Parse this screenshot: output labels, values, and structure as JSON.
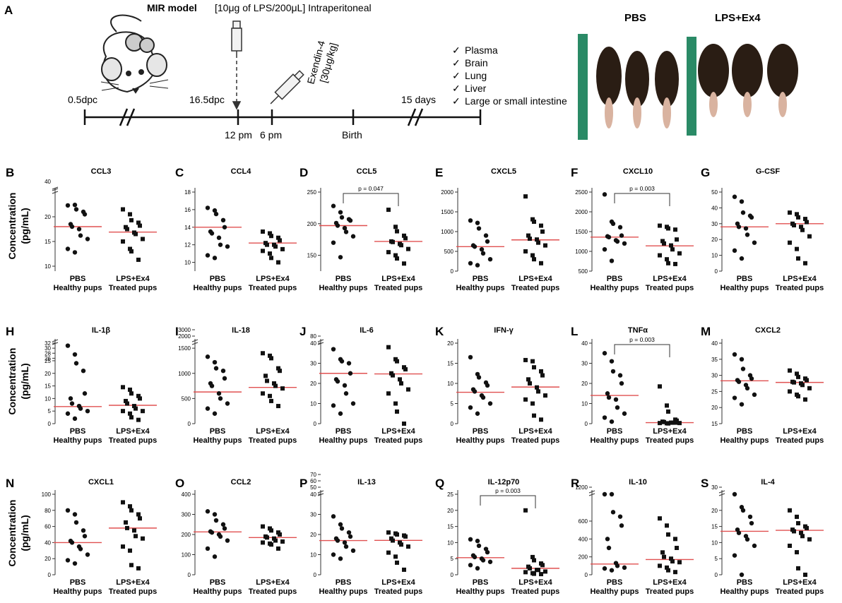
{
  "timeline": {
    "panel_letter": "A",
    "model_title": "MIR model",
    "model_dose": "[10μg of LPS/200μL] Intraperitoneal",
    "exendin_line1": "Exendin-4",
    "exendin_line2": "[30μg/kg]",
    "time_labels": [
      "0.5dpc",
      "16.5dpc",
      "12 pm",
      "6 pm",
      "Birth",
      "15 days"
    ],
    "checklist": [
      "Plasma",
      "Brain",
      "Lung",
      "Liver",
      "Large or small intestine"
    ],
    "photo_labels": [
      "PBS",
      "LPS+Ex4"
    ]
  },
  "ylabel_line1": "Concentration",
  "ylabel_line2": "(pg/mL)",
  "group_labels": [
    [
      "PBS",
      "Healthy pups"
    ],
    [
      "LPS+Ex4",
      "Treated pups"
    ]
  ],
  "chart_data": [
    {
      "letter": "B",
      "title": "CCL3",
      "type": "scatter",
      "ylim": [
        9,
        25
      ],
      "ticks": [
        10,
        15,
        20
      ],
      "top_label": "40",
      "break_at": 24,
      "pval": null,
      "median": [
        18,
        16.9
      ],
      "pbs": [
        22.3,
        22.4,
        21.5,
        21,
        20.5,
        18.5,
        18,
        17.5,
        16.2,
        15.5,
        13.5,
        12.8
      ],
      "lps": [
        21.5,
        20.5,
        19.3,
        18.8,
        18.2,
        17.9,
        17.5,
        16.8,
        16.5,
        15.5,
        15,
        13.5,
        13,
        11.3
      ]
    },
    {
      "letter": "C",
      "title": "CCL4",
      "type": "scatter",
      "ylim": [
        9,
        18
      ],
      "ticks": [
        10,
        12,
        14,
        16,
        18
      ],
      "top_label": null,
      "break_at": null,
      "pval": null,
      "median": [
        14,
        12.2
      ],
      "pbs": [
        16.2,
        15.9,
        15.5,
        14.8,
        14,
        13.5,
        13.3,
        12.8,
        12,
        11.8,
        10.8,
        10.5
      ],
      "lps": [
        13.5,
        13.3,
        13,
        12.8,
        12.5,
        12.2,
        12,
        12,
        11.8,
        11.5,
        11.3,
        11,
        10.5,
        10
      ]
    },
    {
      "letter": "D",
      "title": "CCL5",
      "type": "scatter",
      "ylim": [
        125,
        250
      ],
      "ticks": [
        150,
        200,
        250
      ],
      "top_label": null,
      "break_at": null,
      "pval": "p = 0.047",
      "median": [
        197,
        172
      ],
      "pbs": [
        228,
        218,
        210,
        207,
        205,
        201,
        197,
        193,
        187,
        180,
        170,
        147
      ],
      "lps": [
        222,
        195,
        188,
        181,
        177,
        172,
        171,
        168,
        166,
        160,
        155,
        150,
        145,
        137
      ]
    },
    {
      "letter": "E",
      "title": "CXCL5",
      "type": "scatter",
      "ylim": [
        0,
        2000
      ],
      "ticks": [
        0,
        500,
        1000,
        1500,
        2000
      ],
      "top_label": null,
      "break_at": null,
      "pval": null,
      "median": [
        620,
        790
      ],
      "pbs": [
        1280,
        1220,
        1080,
        900,
        750,
        650,
        620,
        550,
        450,
        300,
        200,
        150
      ],
      "lps": [
        1890,
        1310,
        1250,
        1150,
        1000,
        900,
        820,
        800,
        720,
        650,
        500,
        400,
        300,
        200
      ]
    },
    {
      "letter": "F",
      "title": "CXCL10",
      "type": "scatter",
      "ylim": [
        500,
        2500
      ],
      "ticks": [
        500,
        1000,
        1500,
        2000,
        2500
      ],
      "top_label": null,
      "break_at": null,
      "pval": "p = 0.003",
      "median": [
        1360,
        1140
      ],
      "pbs": [
        2440,
        1750,
        1700,
        1610,
        1400,
        1380,
        1360,
        1280,
        1250,
        1200,
        1050,
        760
      ],
      "lps": [
        1650,
        1620,
        1580,
        1550,
        1300,
        1260,
        1200,
        1150,
        1050,
        950,
        900,
        800,
        700,
        680
      ]
    },
    {
      "letter": "G",
      "title": "G-CSF",
      "type": "scatter",
      "ylim": [
        0,
        50
      ],
      "ticks": [
        0,
        10,
        20,
        30,
        40,
        50
      ],
      "top_label": null,
      "break_at": null,
      "pval": null,
      "median": [
        28,
        30
      ],
      "pbs": [
        47,
        44,
        37,
        35,
        34,
        30,
        28,
        27,
        23,
        18,
        13,
        8
      ],
      "lps": [
        37,
        36,
        34,
        33,
        31,
        30,
        29,
        28,
        26,
        22,
        18,
        14,
        8,
        5
      ]
    },
    {
      "letter": "H",
      "title": "IL-1β",
      "type": "scatter",
      "ylim": [
        0,
        32
      ],
      "ticks": [
        0,
        5,
        10,
        15,
        20,
        25,
        26,
        28,
        30,
        32
      ],
      "top_label": null,
      "break_at": 26,
      "pval": null,
      "median": [
        6.8,
        7.3
      ],
      "pbs": [
        31,
        27.5,
        24,
        21,
        12,
        10,
        8,
        7,
        6,
        5,
        4,
        2
      ],
      "lps": [
        14.5,
        13.5,
        12,
        11,
        10,
        9,
        8,
        7,
        6,
        5,
        5,
        4,
        2.5,
        1.5
      ]
    },
    {
      "letter": "I",
      "title": "IL-18",
      "type": "scatter",
      "ylim": [
        0,
        1600
      ],
      "ticks": [
        0,
        500,
        1000,
        1500,
        2000,
        3000
      ],
      "top_label": null,
      "break_at": 1600,
      "pval": null,
      "median": [
        630,
        720
      ],
      "pbs": [
        1330,
        1220,
        1100,
        1050,
        900,
        800,
        750,
        600,
        500,
        400,
        300,
        200
      ],
      "lps": [
        1400,
        1350,
        1300,
        1100,
        1050,
        950,
        850,
        800,
        750,
        700,
        600,
        550,
        450,
        350
      ]
    },
    {
      "letter": "J",
      "title": "IL-6",
      "type": "scatter",
      "ylim": [
        0,
        40
      ],
      "ticks": [
        0,
        10,
        20,
        30,
        40,
        80
      ],
      "top_label": null,
      "break_at": 40,
      "pval": null,
      "median": [
        25,
        24.7
      ],
      "pbs": [
        37,
        32,
        31,
        30,
        25,
        22,
        21,
        19,
        15,
        10,
        9,
        5
      ],
      "lps": [
        38,
        32,
        31,
        28,
        27,
        25,
        24,
        22,
        20,
        17,
        15,
        10,
        6,
        0
      ]
    },
    {
      "letter": "K",
      "title": "IFN-γ",
      "type": "scatter",
      "ylim": [
        0,
        20
      ],
      "ticks": [
        0,
        5,
        10,
        15,
        20
      ],
      "top_label": null,
      "break_at": null,
      "pval": null,
      "median": [
        7.8,
        9.1
      ],
      "pbs": [
        16.5,
        12.3,
        11.5,
        10.2,
        9.5,
        8.5,
        8,
        7,
        6.5,
        5,
        4,
        2.5
      ],
      "lps": [
        15.8,
        15.5,
        14,
        13,
        12,
        11,
        10,
        9,
        8,
        7,
        6,
        5,
        2,
        1
      ]
    },
    {
      "letter": "L",
      "title": "TNFα",
      "type": "scatter",
      "ylim": [
        0,
        40
      ],
      "ticks": [
        0,
        10,
        20,
        30,
        40
      ],
      "top_label": null,
      "break_at": null,
      "pval": "p = 0.003",
      "median": [
        14,
        0.5
      ],
      "pbs": [
        35,
        31,
        26,
        24,
        20,
        15,
        13,
        12,
        8,
        5,
        3,
        1
      ],
      "lps": [
        18.5,
        9,
        6,
        2,
        1.5,
        1,
        0.8,
        0.5,
        0.5,
        0.3,
        0.3,
        0.2,
        0.1,
        0.5
      ]
    },
    {
      "letter": "M",
      "title": "CXCL2",
      "type": "scatter",
      "ylim": [
        15,
        40
      ],
      "ticks": [
        15,
        20,
        25,
        30,
        35,
        40
      ],
      "top_label": null,
      "break_at": null,
      "pval": null,
      "median": [
        28.3,
        27.8
      ],
      "pbs": [
        36.5,
        35,
        32,
        30,
        29,
        28.5,
        28,
        27,
        26,
        24,
        23,
        21
      ],
      "lps": [
        31.5,
        30.5,
        29.5,
        29,
        28.5,
        28,
        27.8,
        27.5,
        27,
        26,
        25,
        24,
        23.5,
        22.5
      ]
    },
    {
      "letter": "N",
      "title": "CXCL1",
      "type": "scatter",
      "ylim": [
        0,
        100
      ],
      "ticks": [
        0,
        20,
        40,
        60,
        80,
        100
      ],
      "top_label": null,
      "break_at": null,
      "pval": null,
      "median": [
        40,
        58
      ],
      "pbs": [
        80,
        75,
        65,
        55,
        48,
        42,
        40,
        35,
        32,
        25,
        18,
        14
      ],
      "lps": [
        90,
        85,
        80,
        75,
        70,
        65,
        58,
        55,
        48,
        45,
        35,
        30,
        12,
        8
      ]
    },
    {
      "letter": "O",
      "title": "CCL2",
      "type": "scatter",
      "ylim": [
        0,
        400
      ],
      "ticks": [
        0,
        100,
        200,
        300,
        400
      ],
      "top_label": null,
      "break_at": null,
      "pval": null,
      "median": [
        213,
        185
      ],
      "pbs": [
        315,
        300,
        270,
        250,
        230,
        215,
        210,
        200,
        190,
        170,
        130,
        90
      ],
      "lps": [
        240,
        230,
        220,
        210,
        200,
        190,
        185,
        180,
        170,
        165,
        160,
        155,
        150,
        130
      ]
    },
    {
      "letter": "P",
      "title": "IL-13",
      "type": "scatter",
      "ylim": [
        0,
        40
      ],
      "ticks": [
        0,
        10,
        20,
        30,
        40,
        50,
        60,
        70
      ],
      "top_label": null,
      "break_at": 40,
      "pval": null,
      "median": [
        17,
        17.1
      ],
      "pbs": [
        29,
        25,
        23,
        21,
        19,
        18,
        17,
        16,
        14,
        12,
        10,
        8
      ],
      "lps": [
        21,
        20.5,
        20,
        19.5,
        19,
        18,
        17,
        16,
        15,
        14,
        11,
        9,
        6,
        2.5
      ]
    },
    {
      "letter": "Q",
      "title": "IL-12p70",
      "type": "scatter",
      "ylim": [
        0,
        25
      ],
      "ticks": [
        0,
        5,
        10,
        15,
        20,
        25
      ],
      "top_label": null,
      "break_at": null,
      "pval": "p = 0.003",
      "median": [
        5.3,
        2
      ],
      "pbs": [
        11,
        10.5,
        9,
        8,
        7,
        6,
        5.5,
        5,
        4.5,
        4,
        3,
        2
      ],
      "lps": [
        20,
        5.5,
        4.5,
        3.5,
        3,
        2.5,
        2,
        1.5,
        1.5,
        1,
        0.8,
        0.5,
        0.3,
        0.2
      ]
    },
    {
      "letter": "R",
      "title": "IL-10",
      "type": "scatter",
      "ylim": [
        0,
        900
      ],
      "ticks": [
        0,
        200,
        400,
        600,
        1200
      ],
      "top_label": null,
      "break_at": 900,
      "pval": null,
      "median": [
        120,
        170
      ],
      "pbs": [
        1100,
        1030,
        700,
        650,
        550,
        400,
        300,
        130,
        100,
        80,
        70,
        50
      ],
      "lps": [
        630,
        550,
        450,
        400,
        300,
        250,
        200,
        180,
        150,
        140,
        100,
        80,
        50,
        30
      ]
    },
    {
      "letter": "S",
      "title": "IL-4",
      "type": "scatter",
      "ylim": [
        0,
        25
      ],
      "ticks": [
        0,
        5,
        10,
        15,
        20,
        30
      ],
      "top_label": null,
      "break_at": 25,
      "pval": null,
      "median": [
        13.5,
        13.8
      ],
      "pbs": [
        29,
        21,
        20,
        18,
        16,
        14,
        13,
        12,
        11,
        9,
        6,
        0
      ],
      "lps": [
        20,
        18,
        16,
        15,
        14.5,
        14,
        13.5,
        13,
        12,
        11,
        9,
        7,
        2,
        0
      ]
    }
  ]
}
